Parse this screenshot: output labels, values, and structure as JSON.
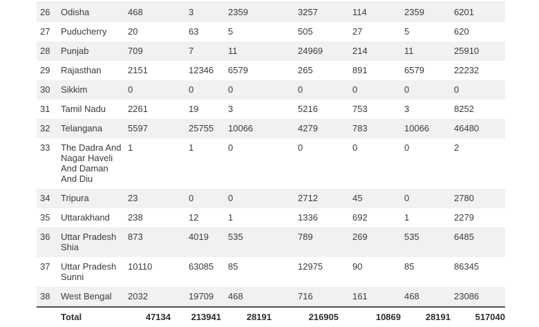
{
  "colors": {
    "row_stripe": "#f1f1f1",
    "row_plain": "#ffffff",
    "total_divider": "#4d4d4d",
    "text": "#3a3a3a"
  },
  "table": {
    "rows": [
      {
        "sno": "26",
        "state": "Odisha",
        "values": [
          "468",
          "3",
          "2359",
          "3257",
          "114",
          "2359",
          "6201"
        ]
      },
      {
        "sno": "27",
        "state": "Puducherry",
        "values": [
          "20",
          "63",
          "5",
          "505",
          "27",
          "5",
          "620"
        ]
      },
      {
        "sno": "28",
        "state": "Punjab",
        "values": [
          "709",
          "7",
          "11",
          "24969",
          "214",
          "11",
          "25910"
        ]
      },
      {
        "sno": "29",
        "state": "Rajasthan",
        "values": [
          "2151",
          "12346",
          "6579",
          "265",
          "891",
          "6579",
          "22232"
        ]
      },
      {
        "sno": "30",
        "state": "Sikkim",
        "values": [
          "0",
          "0",
          "0",
          "0",
          "0",
          "0",
          "0"
        ]
      },
      {
        "sno": "31",
        "state": "Tamil Nadu",
        "values": [
          "2261",
          "19",
          "3",
          "5216",
          "753",
          "3",
          "8252"
        ]
      },
      {
        "sno": "32",
        "state": "Telangana",
        "values": [
          "5597",
          "25755",
          "10066",
          "4279",
          "783",
          "10066",
          "46480"
        ]
      },
      {
        "sno": "33",
        "state": "The Dadra And\nNagar Haveli\nAnd Daman\nAnd Diu",
        "values": [
          "1",
          "1",
          "0",
          "0",
          "0",
          "0",
          "2"
        ]
      },
      {
        "sno": "34",
        "state": "Tripura",
        "values": [
          "23",
          "0",
          "0",
          "2712",
          "45",
          "0",
          "2780"
        ]
      },
      {
        "sno": "35",
        "state": "Uttarakhand",
        "values": [
          "238",
          "12",
          "1",
          "1336",
          "692",
          "1",
          "2279"
        ]
      },
      {
        "sno": "36",
        "state": "Uttar Pradesh\nShia",
        "values": [
          "873",
          "4019",
          "535",
          "789",
          "269",
          "535",
          "6485"
        ]
      },
      {
        "sno": "37",
        "state": "Uttar Pradesh\nSunni",
        "values": [
          "10110",
          "63085",
          "85",
          "12975",
          "90",
          "85",
          "86345"
        ]
      },
      {
        "sno": "38",
        "state": "West Bengal",
        "values": [
          "2032",
          "19709",
          "468",
          "716",
          "161",
          "468",
          "23086"
        ]
      }
    ],
    "footer": {
      "label": "Total",
      "values": [
        "47134",
        "213941",
        "28191",
        "216905",
        "10869",
        "28191",
        "517040"
      ]
    }
  }
}
